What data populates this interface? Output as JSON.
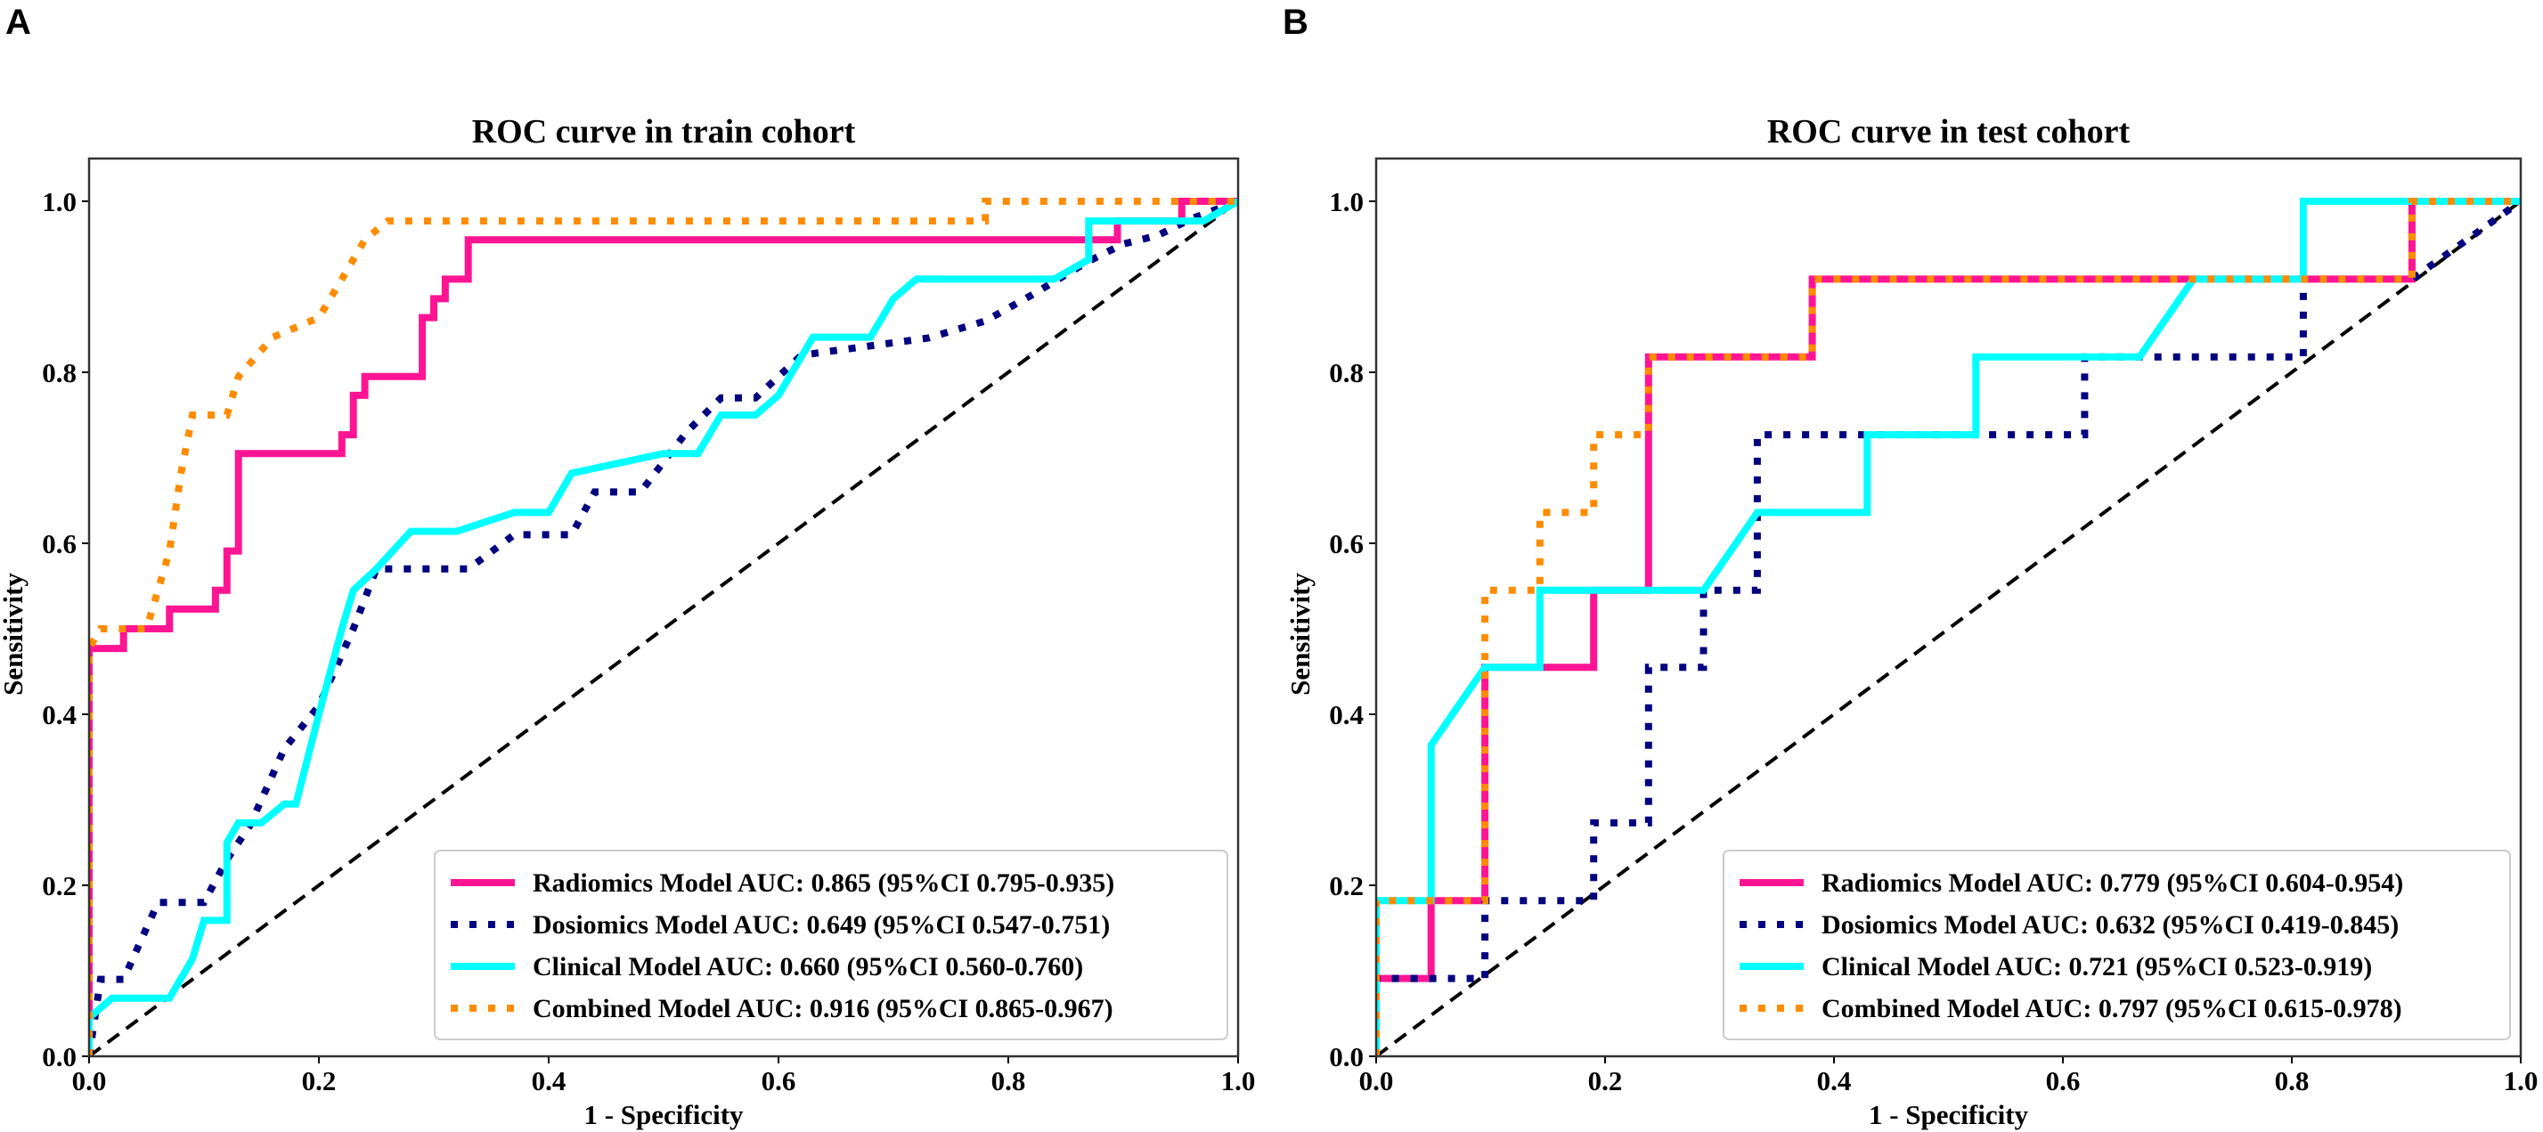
{
  "chart_data": [
    {
      "type": "line",
      "panel_label": "A",
      "title": "ROC curve in train cohort",
      "xlabel": "1 - Specificity",
      "ylabel": "Sensitivity",
      "xlim": [
        0,
        1
      ],
      "ylim": [
        0,
        1.05
      ],
      "xticks": [
        "0.0",
        "0.2",
        "0.4",
        "0.6",
        "0.8",
        "1.0"
      ],
      "yticks": [
        "0.0",
        "0.2",
        "0.4",
        "0.6",
        "0.8",
        "1.0"
      ],
      "legend_position": "lower-right",
      "series": [
        {
          "name": "Radiomics Model AUC: 0.865 (95%CI 0.795-0.935)",
          "color": "#ff1493",
          "style": "solid",
          "points": [
            [
              0,
              0
            ],
            [
              0,
              0.477
            ],
            [
              0.03,
              0.477
            ],
            [
              0.03,
              0.5
            ],
            [
              0.07,
              0.5
            ],
            [
              0.07,
              0.523
            ],
            [
              0.11,
              0.523
            ],
            [
              0.11,
              0.545
            ],
            [
              0.12,
              0.545
            ],
            [
              0.12,
              0.591
            ],
            [
              0.13,
              0.591
            ],
            [
              0.13,
              0.705
            ],
            [
              0.22,
              0.705
            ],
            [
              0.22,
              0.727
            ],
            [
              0.23,
              0.727
            ],
            [
              0.23,
              0.773
            ],
            [
              0.24,
              0.773
            ],
            [
              0.24,
              0.795
            ],
            [
              0.29,
              0.795
            ],
            [
              0.29,
              0.864
            ],
            [
              0.3,
              0.864
            ],
            [
              0.3,
              0.886
            ],
            [
              0.31,
              0.886
            ],
            [
              0.31,
              0.909
            ],
            [
              0.33,
              0.909
            ],
            [
              0.33,
              0.955
            ],
            [
              0.895,
              0.955
            ],
            [
              0.895,
              0.977
            ],
            [
              0.951,
              0.977
            ],
            [
              0.951,
              1
            ],
            [
              1,
              1
            ]
          ]
        },
        {
          "name": "Dosiomics Model AUC: 0.649 (95%CI 0.547-0.751)",
          "color": "#000080",
          "style": "dotted",
          "points": [
            [
              0,
              0
            ],
            [
              0.01,
              0.09
            ],
            [
              0.03,
              0.09
            ],
            [
              0.06,
              0.18
            ],
            [
              0.1,
              0.18
            ],
            [
              0.12,
              0.23
            ],
            [
              0.14,
              0.27
            ],
            [
              0.17,
              0.36
            ],
            [
              0.2,
              0.41
            ],
            [
              0.23,
              0.5
            ],
            [
              0.25,
              0.57
            ],
            [
              0.33,
              0.57
            ],
            [
              0.37,
              0.61
            ],
            [
              0.42,
              0.61
            ],
            [
              0.44,
              0.66
            ],
            [
              0.48,
              0.66
            ],
            [
              0.52,
              0.73
            ],
            [
              0.55,
              0.77
            ],
            [
              0.58,
              0.77
            ],
            [
              0.62,
              0.82
            ],
            [
              0.73,
              0.84
            ],
            [
              0.78,
              0.86
            ],
            [
              0.82,
              0.89
            ],
            [
              0.87,
              0.93
            ],
            [
              0.9,
              0.95
            ],
            [
              0.93,
              0.96
            ],
            [
              0.96,
              0.98
            ],
            [
              1,
              1
            ]
          ]
        },
        {
          "name": "Clinical Model AUC: 0.660 (95%CI 0.560-0.760)",
          "color": "#00ffff",
          "style": "solid",
          "points": [
            [
              0,
              0
            ],
            [
              0,
              0.045
            ],
            [
              0.02,
              0.068
            ],
            [
              0.07,
              0.068
            ],
            [
              0.09,
              0.114
            ],
            [
              0.1,
              0.159
            ],
            [
              0.12,
              0.159
            ],
            [
              0.12,
              0.25
            ],
            [
              0.13,
              0.273
            ],
            [
              0.15,
              0.273
            ],
            [
              0.17,
              0.295
            ],
            [
              0.18,
              0.295
            ],
            [
              0.2,
              0.4
            ],
            [
              0.22,
              0.5
            ],
            [
              0.23,
              0.545
            ],
            [
              0.25,
              0.57
            ],
            [
              0.28,
              0.614
            ],
            [
              0.32,
              0.614
            ],
            [
              0.37,
              0.636
            ],
            [
              0.4,
              0.636
            ],
            [
              0.42,
              0.682
            ],
            [
              0.5,
              0.705
            ],
            [
              0.53,
              0.705
            ],
            [
              0.55,
              0.75
            ],
            [
              0.58,
              0.75
            ],
            [
              0.6,
              0.773
            ],
            [
              0.63,
              0.841
            ],
            [
              0.68,
              0.841
            ],
            [
              0.7,
              0.886
            ],
            [
              0.72,
              0.909
            ],
            [
              0.84,
              0.909
            ],
            [
              0.87,
              0.932
            ],
            [
              0.87,
              0.977
            ],
            [
              0.97,
              0.977
            ],
            [
              1,
              1
            ]
          ]
        },
        {
          "name": "Combined Model AUC: 0.916 (95%CI 0.865-0.967)",
          "color": "#ff8c00",
          "style": "dotted",
          "points": [
            [
              0,
              0
            ],
            [
              0,
              0.477
            ],
            [
              0.01,
              0.5
            ],
            [
              0.05,
              0.5
            ],
            [
              0.06,
              0.545
            ],
            [
              0.07,
              0.591
            ],
            [
              0.08,
              0.682
            ],
            [
              0.09,
              0.75
            ],
            [
              0.12,
              0.75
            ],
            [
              0.13,
              0.795
            ],
            [
              0.16,
              0.841
            ],
            [
              0.2,
              0.864
            ],
            [
              0.22,
              0.909
            ],
            [
              0.24,
              0.955
            ],
            [
              0.26,
              0.977
            ],
            [
              0.78,
              0.977
            ],
            [
              0.78,
              1
            ],
            [
              1,
              1
            ]
          ]
        }
      ],
      "reference_line": [
        [
          0,
          0
        ],
        [
          1,
          1
        ]
      ]
    },
    {
      "type": "line",
      "panel_label": "B",
      "title": "ROC curve in test cohort",
      "xlabel": "1 - Specificity",
      "ylabel": "Sensitivity",
      "xlim": [
        0,
        1
      ],
      "ylim": [
        0,
        1.05
      ],
      "xticks": [
        "0.0",
        "0.2",
        "0.4",
        "0.6",
        "0.8",
        "1.0"
      ],
      "yticks": [
        "0.0",
        "0.2",
        "0.4",
        "0.6",
        "0.8",
        "1.0"
      ],
      "legend_position": "lower-right",
      "series": [
        {
          "name": "Radiomics Model AUC: 0.779 (95%CI 0.604-0.954)",
          "color": "#ff1493",
          "style": "solid",
          "points": [
            [
              0,
              0
            ],
            [
              0,
              0.091
            ],
            [
              0.048,
              0.091
            ],
            [
              0.048,
              0.182
            ],
            [
              0.095,
              0.182
            ],
            [
              0.095,
              0.455
            ],
            [
              0.19,
              0.455
            ],
            [
              0.19,
              0.545
            ],
            [
              0.238,
              0.545
            ],
            [
              0.238,
              0.818
            ],
            [
              0.381,
              0.818
            ],
            [
              0.381,
              0.909
            ],
            [
              0.905,
              0.909
            ],
            [
              0.905,
              1
            ],
            [
              1,
              1
            ]
          ]
        },
        {
          "name": "Dosiomics Model AUC: 0.632 (95%CI 0.419-0.845)",
          "color": "#000080",
          "style": "dotted",
          "points": [
            [
              0,
              0
            ],
            [
              0,
              0.091
            ],
            [
              0.095,
              0.091
            ],
            [
              0.095,
              0.182
            ],
            [
              0.19,
              0.182
            ],
            [
              0.19,
              0.273
            ],
            [
              0.238,
              0.273
            ],
            [
              0.238,
              0.455
            ],
            [
              0.286,
              0.455
            ],
            [
              0.286,
              0.545
            ],
            [
              0.333,
              0.545
            ],
            [
              0.333,
              0.727
            ],
            [
              0.619,
              0.727
            ],
            [
              0.619,
              0.818
            ],
            [
              0.81,
              0.818
            ],
            [
              0.81,
              0.909
            ],
            [
              0.905,
              0.909
            ],
            [
              1,
              1
            ]
          ]
        },
        {
          "name": "Clinical Model AUC: 0.721 (95%CI 0.523-0.919)",
          "color": "#00ffff",
          "style": "solid",
          "points": [
            [
              0,
              0
            ],
            [
              0,
              0.182
            ],
            [
              0.048,
              0.182
            ],
            [
              0.048,
              0.364
            ],
            [
              0.095,
              0.455
            ],
            [
              0.143,
              0.455
            ],
            [
              0.143,
              0.545
            ],
            [
              0.286,
              0.545
            ],
            [
              0.333,
              0.636
            ],
            [
              0.429,
              0.636
            ],
            [
              0.429,
              0.727
            ],
            [
              0.524,
              0.727
            ],
            [
              0.524,
              0.818
            ],
            [
              0.667,
              0.818
            ],
            [
              0.714,
              0.909
            ],
            [
              0.81,
              0.909
            ],
            [
              0.81,
              1
            ],
            [
              1,
              1
            ]
          ]
        },
        {
          "name": "Combined Model AUC: 0.797 (95%CI 0.615-0.978)",
          "color": "#ff8c00",
          "style": "dotted",
          "points": [
            [
              0,
              0
            ],
            [
              0,
              0.182
            ],
            [
              0.095,
              0.182
            ],
            [
              0.095,
              0.545
            ],
            [
              0.143,
              0.545
            ],
            [
              0.143,
              0.636
            ],
            [
              0.19,
              0.636
            ],
            [
              0.19,
              0.727
            ],
            [
              0.238,
              0.727
            ],
            [
              0.238,
              0.818
            ],
            [
              0.381,
              0.818
            ],
            [
              0.381,
              0.909
            ],
            [
              0.905,
              0.909
            ],
            [
              0.905,
              1
            ],
            [
              1,
              1
            ]
          ]
        }
      ],
      "reference_line": [
        [
          0,
          0
        ],
        [
          1,
          1
        ]
      ]
    }
  ]
}
